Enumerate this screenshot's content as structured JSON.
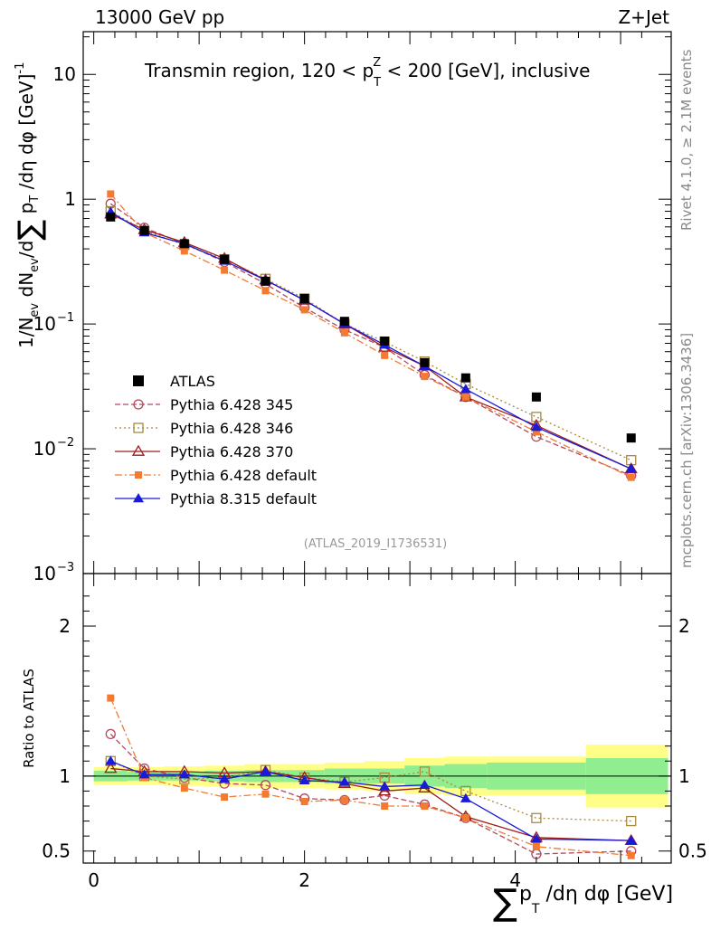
{
  "chart_data": [
    {
      "type": "scatter",
      "panel": "main",
      "header_left": "13000 GeV pp",
      "header_right": "Z+Jet",
      "title": "Transmin region, 120 < p_T^Z < 200 [GeV], inclusive",
      "title_parts": {
        "pre": "Transmin region, 120 < p",
        "sup": "Z",
        "sub": "T",
        "post": " < 200 [GeV], inclusive"
      },
      "ylabel": "1/N_ev dN_ev/d∑ p_T /dη dφ [GeV]^-1",
      "ylabel_parts": {
        "a": "1/N",
        "a_sub": "ev",
        "b": " dN",
        "b_sub": "ev",
        "c": "/d",
        "sum": "∑",
        "d": " p",
        "d_sub": "T",
        "e": " /dη dφ  [GeV]",
        "e_sup": "-1"
      },
      "yscale": "log",
      "ylim": [
        0.001,
        22
      ],
      "yticks": [
        {
          "value": 10,
          "label": "10"
        },
        {
          "value": 1,
          "label": "1"
        },
        {
          "value": 0.1,
          "base": "10",
          "exp": "−1"
        },
        {
          "value": 0.01,
          "base": "10",
          "exp": "−2"
        },
        {
          "value": 0.001,
          "base": "10",
          "exp": "−3"
        }
      ],
      "xlim": [
        -0.1,
        5.48
      ],
      "x": [
        0.16,
        0.48,
        0.86,
        1.24,
        1.63,
        2.0,
        2.38,
        2.76,
        3.14,
        3.53,
        4.2,
        5.1
      ],
      "reference": {
        "name": "ATLAS",
        "color": "#000000",
        "marker": "square",
        "values": [
          0.72,
          0.56,
          0.44,
          0.33,
          0.22,
          0.16,
          0.105,
          0.073,
          0.049,
          0.037,
          0.026,
          0.0122
        ]
      },
      "series": [
        {
          "name": "Pythia 6.428 345",
          "color": "#b5485e",
          "marker": "open-circle",
          "dash": "6,3",
          "values": [
            0.92,
            0.59,
            0.44,
            0.315,
            0.21,
            0.135,
            0.09,
            0.065,
            0.039,
            0.026,
            0.0125,
            0.0061
          ]
        },
        {
          "name": "Pythia 6.428 346",
          "color": "#a88a3e",
          "marker": "open-square",
          "dash": "2,3",
          "values": [
            0.8,
            0.56,
            0.43,
            0.33,
            0.23,
            0.16,
            0.1,
            0.072,
            0.05,
            0.033,
            0.018,
            0.0081
          ]
        },
        {
          "name": "Pythia 6.428 370",
          "color": "#9e1c1c",
          "marker": "open-triangle",
          "dash": "",
          "values": [
            0.76,
            0.57,
            0.45,
            0.335,
            0.225,
            0.155,
            0.1,
            0.065,
            0.046,
            0.026,
            0.0154,
            0.0069
          ]
        },
        {
          "name": "Pythia 6.428 default",
          "color": "#f47a30",
          "marker": "filled-square",
          "dash": "8,3,2,3",
          "values": [
            1.1,
            0.54,
            0.385,
            0.27,
            0.185,
            0.13,
            0.085,
            0.056,
            0.038,
            0.026,
            0.0137,
            0.0059
          ]
        },
        {
          "name": "Pythia 8.315 default",
          "color": "#1a1ad8",
          "marker": "filled-triangle",
          "dash": "",
          "values": [
            0.79,
            0.54,
            0.44,
            0.32,
            0.225,
            0.155,
            0.1,
            0.068,
            0.046,
            0.03,
            0.0149,
            0.0069
          ]
        }
      ],
      "watermark": "(ATLAS_2019_I1736531)",
      "side_label_top": "Rivet 4.1.0, ≥ 2.1M events",
      "side_label_bottom": "mcplots.cern.ch [arXiv:1306.3436]",
      "legend_position": "lower-left"
    },
    {
      "type": "scatter",
      "panel": "ratio",
      "ylabel": "Ratio to ATLAS",
      "xlabel": "∑ p_T /dη dφ [GeV]",
      "xlabel_parts": {
        "sum": "∑",
        "p": "p",
        "sub": "T",
        "rest": " /dη dφ [GeV]"
      },
      "ylim": [
        0.42,
        2.35
      ],
      "yticks": [
        {
          "value": 0.5,
          "label": "0.5"
        },
        {
          "value": 1,
          "label": "1"
        },
        {
          "value": 2,
          "label": "2"
        }
      ],
      "xticks": [
        {
          "value": 0,
          "label": "0"
        },
        {
          "value": 2,
          "label": "2"
        },
        {
          "value": 4,
          "label": "4"
        }
      ],
      "x": [
        0.16,
        0.48,
        0.86,
        1.24,
        1.63,
        2.0,
        2.38,
        2.76,
        3.14,
        3.53,
        4.2,
        5.1
      ],
      "bin_edges": [
        0,
        0.32,
        0.67,
        1.05,
        1.43,
        1.82,
        2.19,
        2.57,
        2.95,
        3.33,
        3.73,
        4.67,
        5.45
      ],
      "band_green": [
        0.035,
        0.03,
        0.03,
        0.035,
        0.04,
        0.04,
        0.05,
        0.05,
        0.07,
        0.08,
        0.09,
        0.12
      ],
      "band_yellow": [
        0.06,
        0.06,
        0.065,
        0.07,
        0.08,
        0.08,
        0.09,
        0.1,
        0.12,
        0.13,
        0.13,
        0.21
      ],
      "series": [
        {
          "name": "Pythia 6.428 345",
          "values": [
            1.28,
            1.05,
            0.99,
            0.95,
            0.94,
            0.85,
            0.84,
            0.87,
            0.81,
            0.72,
            0.48,
            0.5
          ]
        },
        {
          "name": "Pythia 6.428 346",
          "values": [
            1.1,
            1.0,
            0.98,
            0.99,
            1.04,
            0.99,
            0.96,
            0.99,
            1.03,
            0.9,
            0.72,
            0.7
          ]
        },
        {
          "name": "Pythia 6.428 370",
          "values": [
            1.05,
            1.03,
            1.03,
            1.02,
            1.03,
            0.99,
            0.95,
            0.9,
            0.92,
            0.73,
            0.59,
            0.57
          ]
        },
        {
          "name": "Pythia 6.428 default",
          "values": [
            1.52,
            0.99,
            0.92,
            0.86,
            0.88,
            0.83,
            0.84,
            0.8,
            0.8,
            0.72,
            0.53,
            0.47
          ]
        },
        {
          "name": "Pythia 8.315 default",
          "values": [
            1.1,
            1.01,
            1.01,
            0.98,
            1.03,
            0.97,
            0.96,
            0.93,
            0.94,
            0.85,
            0.58,
            0.57
          ]
        }
      ]
    }
  ]
}
